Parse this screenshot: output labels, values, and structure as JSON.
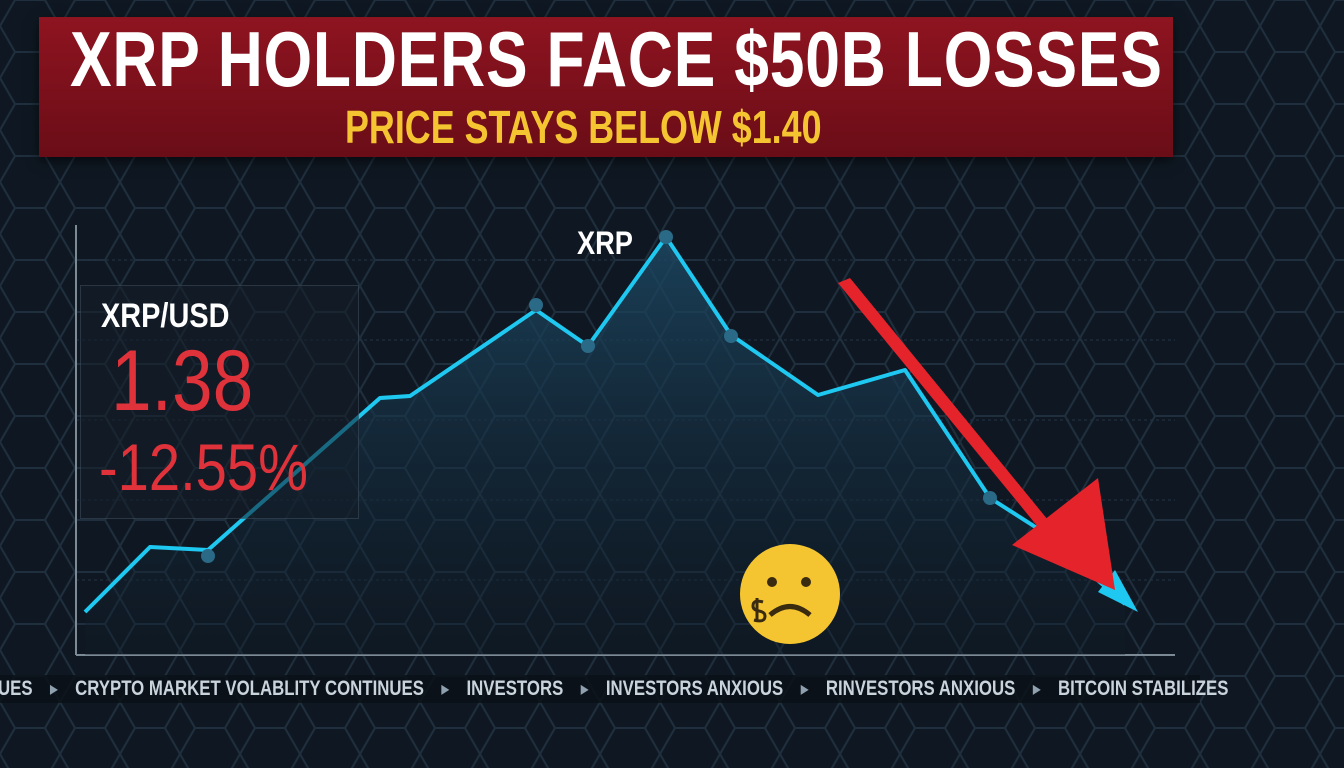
{
  "headline": "XRP HOLDERS FACE $50B LOSSES",
  "subheadline": "PRICE STAYS BELOW $1.40",
  "chart": {
    "series_label": "XRP",
    "trend": "down"
  },
  "price_box": {
    "pair": "XRP/USD",
    "price": "1.38",
    "change": "-12.55%"
  },
  "ticker": [
    "UES",
    "CRYPTO MARKET VOLABLITY CONTINUES",
    "INVESTORS",
    "INVESTORS ANXIOUS",
    "RINVESTORS ANXIOUS",
    "BITCOIN STABILIZES"
  ],
  "colors": {
    "banner": "#7d1019",
    "headline": "#ffffff",
    "subheadline": "#f5c531",
    "line": "#1ec8f0",
    "negative": "#e0323a",
    "arrow": "#e5232b"
  },
  "icons": [
    "worried-face-emoji-icon",
    "down-arrow-icon"
  ]
}
